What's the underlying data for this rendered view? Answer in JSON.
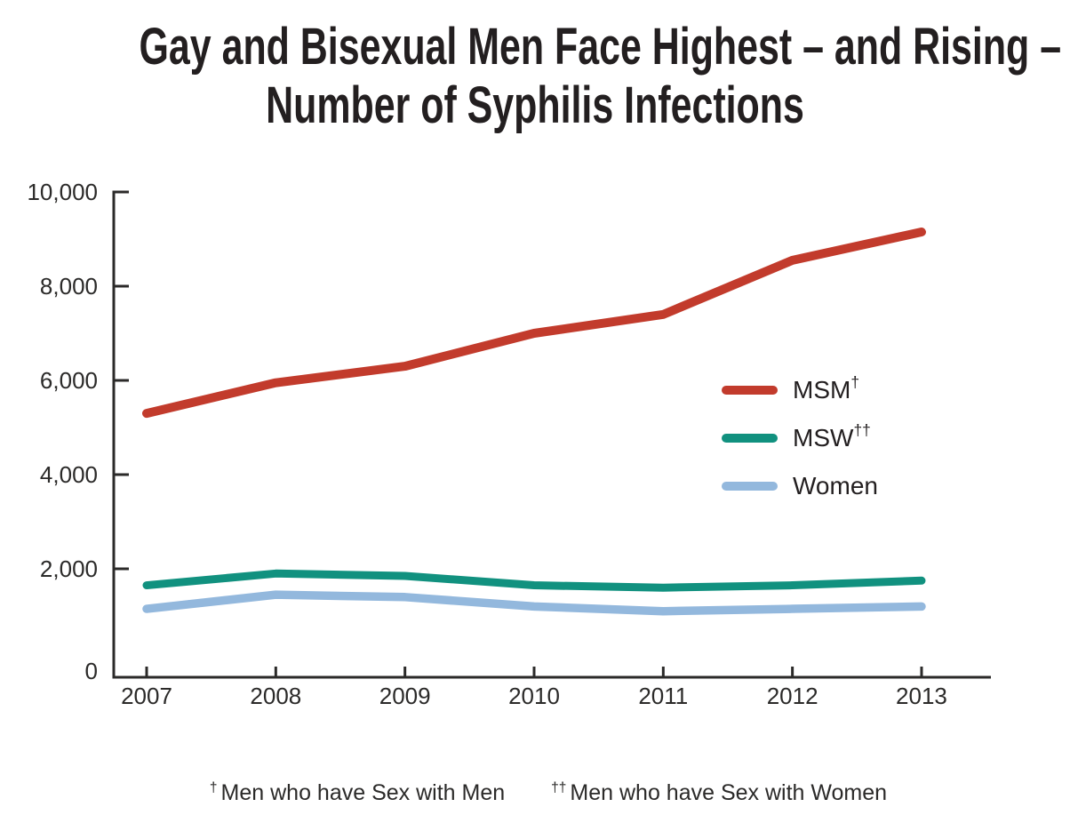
{
  "title": {
    "line1": "Gay and Bisexual Men Face Highest – and Rising –",
    "line2": "Number of Syphilis Infections"
  },
  "colors": {
    "axis": "#2B2A29",
    "text": "#231F20",
    "msm_red": "#C23B2C",
    "msw_teal": "#11917F",
    "women_blue": "#93B8DD"
  },
  "legend": {
    "items": [
      {
        "label": "MSM",
        "sup": "†",
        "color": "#C23B2C"
      },
      {
        "label": "MSW",
        "sup": "††",
        "color": "#11917F"
      },
      {
        "label": "Women",
        "sup": "",
        "color": "#93B8DD"
      }
    ]
  },
  "footnotes": [
    {
      "sup": "†",
      "text": "Men who have Sex with Men"
    },
    {
      "sup": "††",
      "text": "Men who have Sex with Women"
    }
  ],
  "chart_data": {
    "type": "line",
    "x": [
      2007,
      2008,
      2009,
      2010,
      2011,
      2012,
      2013
    ],
    "series": [
      {
        "name": "MSM",
        "color": "#C23B2C",
        "values": [
          5300,
          5950,
          6300,
          7000,
          7400,
          8550,
          9150
        ]
      },
      {
        "name": "MSW",
        "color": "#11917F",
        "values": [
          1650,
          1900,
          1850,
          1650,
          1600,
          1650,
          1750
        ]
      },
      {
        "name": "Women",
        "color": "#93B8DD",
        "values": [
          1150,
          1450,
          1400,
          1200,
          1100,
          1150,
          1200
        ]
      }
    ],
    "title": "Gay and Bisexual Men Face Highest – and Rising – Number of Syphilis Infections",
    "xlabel": "",
    "ylabel": "",
    "ylim": [
      0,
      10000
    ],
    "yticks": [
      0,
      2000,
      4000,
      6000,
      8000,
      10000
    ],
    "ytick_labels": [
      "0",
      "2,000",
      "4,000",
      "6,000",
      "8,000",
      "10,000"
    ],
    "grid": false,
    "legend_position": "right-middle"
  }
}
